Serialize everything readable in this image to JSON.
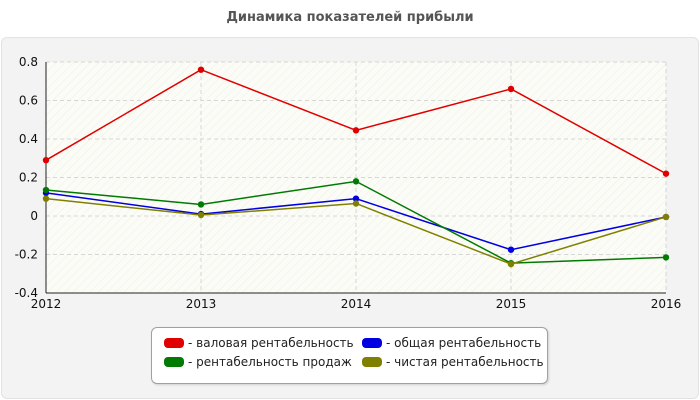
{
  "chart_data": {
    "type": "line",
    "title": "Динамика показателей прибыли",
    "categories": [
      "2012",
      "2013",
      "2014",
      "2015",
      "2016"
    ],
    "ylim": [
      -0.4,
      0.8
    ],
    "yticks": [
      "0.8",
      "0.6",
      "0.4",
      "0.2",
      "0",
      "-0.2",
      "-0.4"
    ],
    "ytick_values": [
      0.8,
      0.6,
      0.4,
      0.2,
      0,
      -0.2,
      -0.4
    ],
    "grid": true,
    "legend_position": "bottom",
    "series": [
      {
        "name": "- валовая рентабельность",
        "color": "#e00000",
        "values": [
          0.29,
          0.76,
          0.445,
          0.66,
          0.22
        ]
      },
      {
        "name": "- общая рентабельность",
        "color": "#0000e0",
        "values": [
          0.12,
          0.01,
          0.09,
          -0.175,
          -0.005
        ]
      },
      {
        "name": "- рентабельность продаж",
        "color": "#007a00",
        "values": [
          0.135,
          0.06,
          0.18,
          -0.245,
          -0.215
        ]
      },
      {
        "name": "- чистая рентабельность",
        "color": "#808000",
        "values": [
          0.09,
          0.005,
          0.065,
          -0.25,
          -0.005
        ]
      }
    ]
  }
}
